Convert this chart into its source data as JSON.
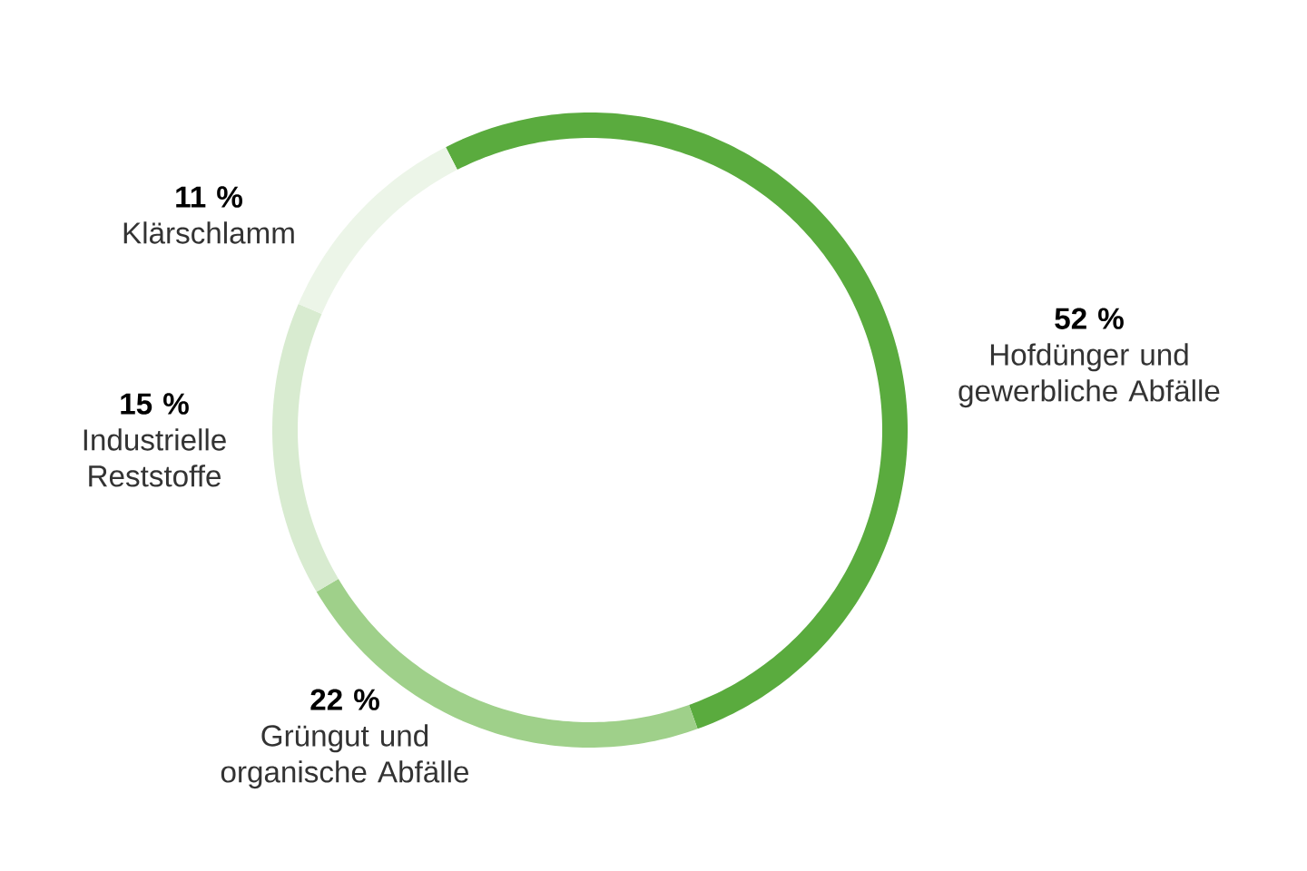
{
  "chart_data": {
    "type": "donut",
    "categories": [
      "Hofdünger und gewerbliche Abfälle",
      "Grüngut und organische Abfälle",
      "Industrielle Reststoffe",
      "Klärschlamm"
    ],
    "values": [
      52,
      22,
      15,
      11
    ],
    "value_labels": [
      "52 %",
      "22 %",
      "15 %",
      "11 %"
    ],
    "colors": [
      "#5aab3e",
      "#9fd08a",
      "#d8ebd0",
      "#ecf5e8"
    ]
  }
}
